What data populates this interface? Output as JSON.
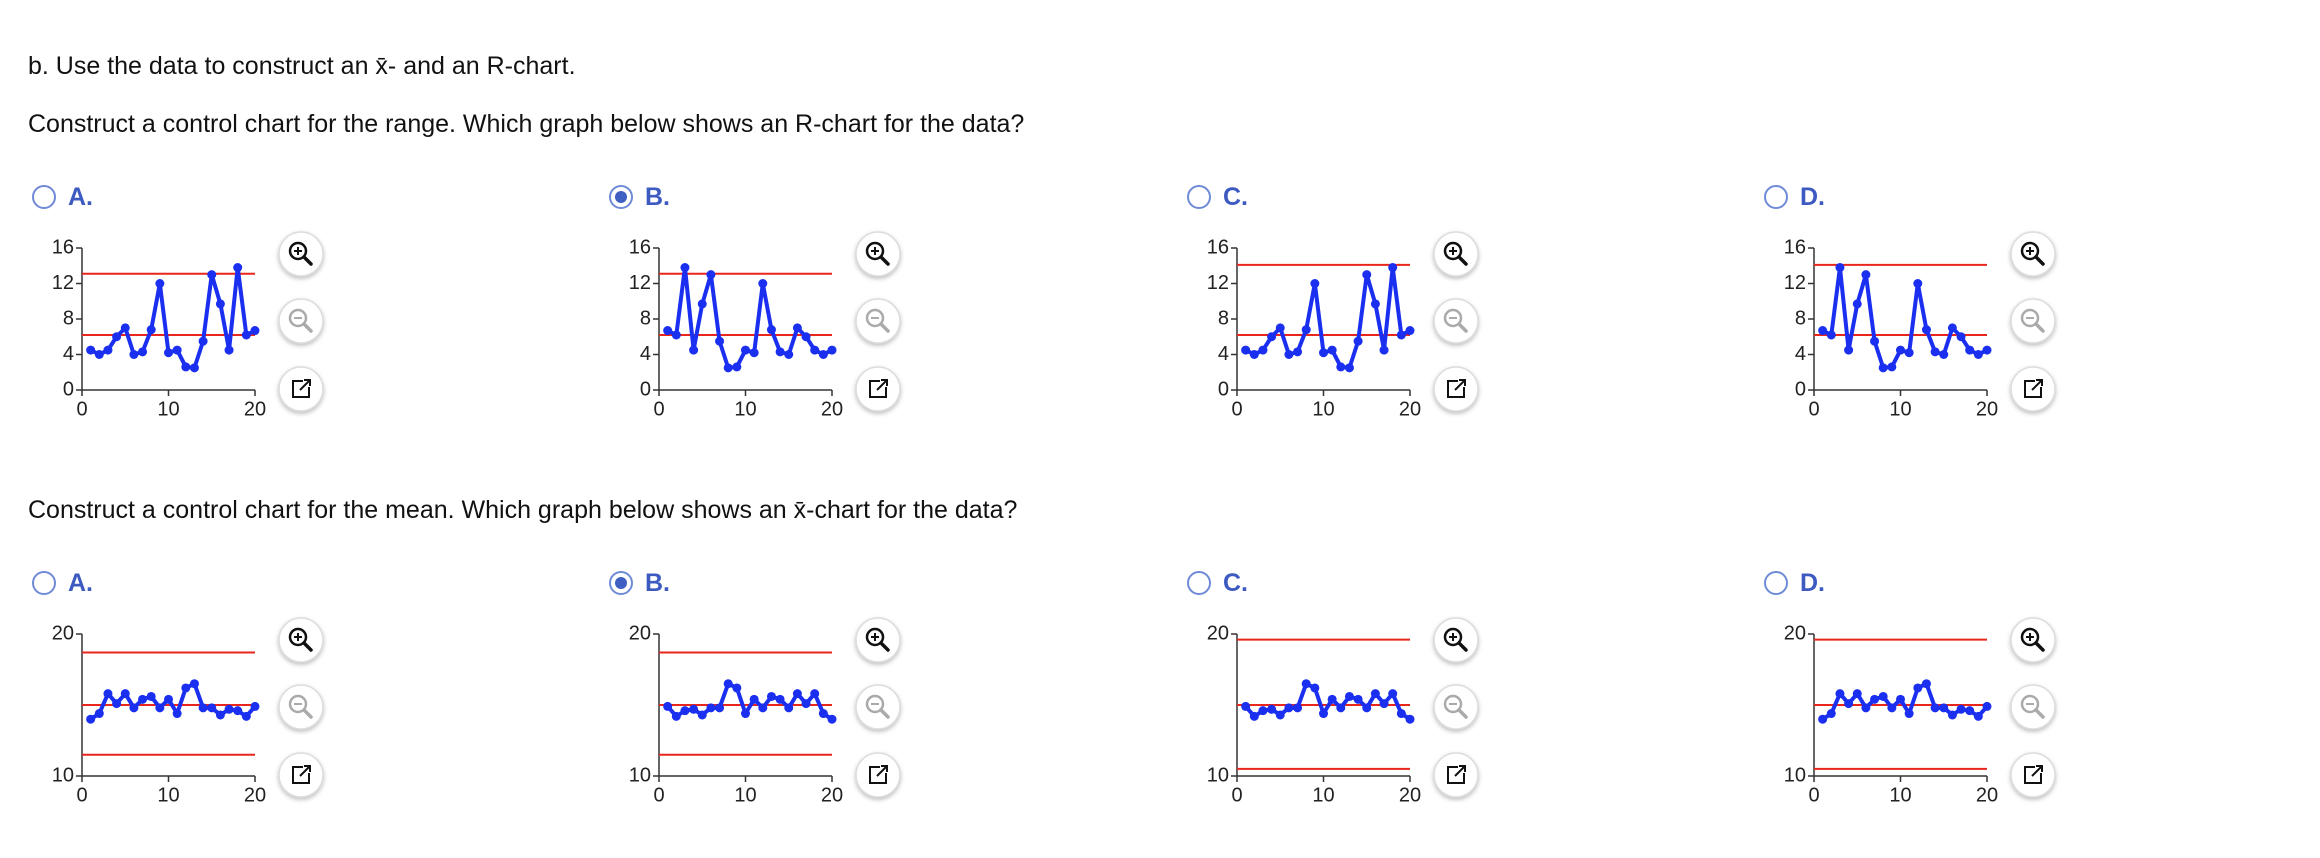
{
  "header": {
    "text": "b. Use the data to construct an x̄- and an R-chart."
  },
  "questions": [
    {
      "prompt": "Construct a control chart for the range. Which graph below shows an R-chart for the data?",
      "selected": 1,
      "options": [
        {
          "label": "A.",
          "chart": {
            "type": "line",
            "xlim": [
              0,
              20
            ],
            "xticks": [
              0,
              10,
              20
            ],
            "ylim": [
              0,
              16
            ],
            "yticks": [
              0,
              4,
              8,
              12,
              16
            ],
            "x": [
              1,
              2,
              3,
              4,
              5,
              6,
              7,
              8,
              9,
              10,
              11,
              12,
              13,
              14,
              15,
              16,
              17,
              18,
              19,
              20
            ],
            "series": [
              {
                "color": "#1a2ff0",
                "values": [
                  4.5,
                  4,
                  4.5,
                  6,
                  7,
                  4,
                  4.3,
                  6.8,
                  12,
                  4.2,
                  4.5,
                  2.6,
                  2.5,
                  5.5,
                  13,
                  9.7,
                  4.5,
                  13.8,
                  6.2,
                  6.7
                ]
              }
            ],
            "control_limits": [
              13.1,
              6.2
            ],
            "limit_color": "#e8261c"
          }
        },
        {
          "label": "B.",
          "chart": {
            "type": "line",
            "xlim": [
              0,
              20
            ],
            "xticks": [
              0,
              10,
              20
            ],
            "ylim": [
              0,
              16
            ],
            "yticks": [
              0,
              4,
              8,
              12,
              16
            ],
            "x": [
              1,
              2,
              3,
              4,
              5,
              6,
              7,
              8,
              9,
              10,
              11,
              12,
              13,
              14,
              15,
              16,
              17,
              18,
              19,
              20
            ],
            "series": [
              {
                "color": "#1a2ff0",
                "values": [
                  6.7,
                  6.2,
                  13.8,
                  4.5,
                  9.7,
                  13,
                  5.5,
                  2.5,
                  2.6,
                  4.5,
                  4.2,
                  12,
                  6.8,
                  4.3,
                  4,
                  7,
                  6,
                  4.5,
                  4,
                  4.5
                ]
              }
            ],
            "control_limits": [
              13.1,
              6.2
            ],
            "limit_color": "#e8261c"
          }
        },
        {
          "label": "C.",
          "chart": {
            "type": "line",
            "xlim": [
              0,
              20
            ],
            "xticks": [
              0,
              10,
              20
            ],
            "ylim": [
              0,
              16
            ],
            "yticks": [
              0,
              4,
              8,
              12,
              16
            ],
            "x": [
              1,
              2,
              3,
              4,
              5,
              6,
              7,
              8,
              9,
              10,
              11,
              12,
              13,
              14,
              15,
              16,
              17,
              18,
              19,
              20
            ],
            "series": [
              {
                "color": "#1a2ff0",
                "values": [
                  4.5,
                  4,
                  4.5,
                  6,
                  7,
                  4,
                  4.3,
                  6.8,
                  12,
                  4.2,
                  4.5,
                  2.6,
                  2.5,
                  5.5,
                  13,
                  9.7,
                  4.5,
                  13.8,
                  6.2,
                  6.7
                ]
              }
            ],
            "control_limits": [
              14.1,
              6.2
            ],
            "limit_color": "#e8261c"
          }
        },
        {
          "label": "D.",
          "chart": {
            "type": "line",
            "xlim": [
              0,
              20
            ],
            "xticks": [
              0,
              10,
              20
            ],
            "ylim": [
              0,
              16
            ],
            "yticks": [
              0,
              4,
              8,
              12,
              16
            ],
            "x": [
              1,
              2,
              3,
              4,
              5,
              6,
              7,
              8,
              9,
              10,
              11,
              12,
              13,
              14,
              15,
              16,
              17,
              18,
              19,
              20
            ],
            "series": [
              {
                "color": "#1a2ff0",
                "values": [
                  6.7,
                  6.2,
                  13.8,
                  4.5,
                  9.7,
                  13,
                  5.5,
                  2.5,
                  2.6,
                  4.5,
                  4.2,
                  12,
                  6.8,
                  4.3,
                  4,
                  7,
                  6,
                  4.5,
                  4,
                  4.5
                ]
              }
            ],
            "control_limits": [
              14.1,
              6.2
            ],
            "limit_color": "#e8261c"
          }
        }
      ]
    },
    {
      "prompt": "Construct a control chart for the mean. Which graph below shows an x̄-chart for the data?",
      "selected": 1,
      "options": [
        {
          "label": "A.",
          "chart": {
            "type": "line",
            "xlim": [
              0,
              20
            ],
            "xticks": [
              0,
              10,
              20
            ],
            "ylim": [
              10,
              20
            ],
            "yticks": [
              10,
              20
            ],
            "x": [
              1,
              2,
              3,
              4,
              5,
              6,
              7,
              8,
              9,
              10,
              11,
              12,
              13,
              14,
              15,
              16,
              17,
              18,
              19,
              20
            ],
            "series": [
              {
                "color": "#1a2ff0",
                "values": [
                  14,
                  14.4,
                  15.8,
                  15.1,
                  15.8,
                  14.8,
                  15.4,
                  15.6,
                  14.8,
                  15.4,
                  14.4,
                  16.2,
                  16.5,
                  14.8,
                  14.8,
                  14.3,
                  14.7,
                  14.6,
                  14.2,
                  14.9
                ]
              }
            ],
            "control_limits": [
              18.7,
              15,
              11.5
            ],
            "limit_color": "#e8261c"
          }
        },
        {
          "label": "B.",
          "chart": {
            "type": "line",
            "xlim": [
              0,
              20
            ],
            "xticks": [
              0,
              10,
              20
            ],
            "ylim": [
              10,
              20
            ],
            "yticks": [
              10,
              20
            ],
            "x": [
              1,
              2,
              3,
              4,
              5,
              6,
              7,
              8,
              9,
              10,
              11,
              12,
              13,
              14,
              15,
              16,
              17,
              18,
              19,
              20
            ],
            "series": [
              {
                "color": "#1a2ff0",
                "values": [
                  14.9,
                  14.2,
                  14.6,
                  14.7,
                  14.3,
                  14.8,
                  14.8,
                  16.5,
                  16.2,
                  14.4,
                  15.4,
                  14.8,
                  15.6,
                  15.4,
                  14.8,
                  15.8,
                  15.1,
                  15.8,
                  14.4,
                  14
                ]
              }
            ],
            "control_limits": [
              18.7,
              15,
              11.5
            ],
            "limit_color": "#e8261c"
          }
        },
        {
          "label": "C.",
          "chart": {
            "type": "line",
            "xlim": [
              0,
              20
            ],
            "xticks": [
              0,
              10,
              20
            ],
            "ylim": [
              10,
              20
            ],
            "yticks": [
              10,
              20
            ],
            "x": [
              1,
              2,
              3,
              4,
              5,
              6,
              7,
              8,
              9,
              10,
              11,
              12,
              13,
              14,
              15,
              16,
              17,
              18,
              19,
              20
            ],
            "series": [
              {
                "color": "#1a2ff0",
                "values": [
                  14.9,
                  14.2,
                  14.6,
                  14.7,
                  14.3,
                  14.8,
                  14.8,
                  16.5,
                  16.2,
                  14.4,
                  15.4,
                  14.8,
                  15.6,
                  15.4,
                  14.8,
                  15.8,
                  15.1,
                  15.8,
                  14.4,
                  14
                ]
              }
            ],
            "control_limits": [
              19.6,
              15,
              10.5
            ],
            "limit_color": "#e8261c"
          }
        },
        {
          "label": "D.",
          "chart": {
            "type": "line",
            "xlim": [
              0,
              20
            ],
            "xticks": [
              0,
              10,
              20
            ],
            "ylim": [
              10,
              20
            ],
            "yticks": [
              10,
              20
            ],
            "x": [
              1,
              2,
              3,
              4,
              5,
              6,
              7,
              8,
              9,
              10,
              11,
              12,
              13,
              14,
              15,
              16,
              17,
              18,
              19,
              20
            ],
            "series": [
              {
                "color": "#1a2ff0",
                "values": [
                  14,
                  14.4,
                  15.8,
                  15.1,
                  15.8,
                  14.8,
                  15.4,
                  15.6,
                  14.8,
                  15.4,
                  14.4,
                  16.2,
                  16.5,
                  14.8,
                  14.8,
                  14.3,
                  14.7,
                  14.6,
                  14.2,
                  14.9
                ]
              }
            ],
            "control_limits": [
              19.6,
              15,
              10.5
            ],
            "limit_color": "#e8261c"
          }
        }
      ]
    }
  ]
}
